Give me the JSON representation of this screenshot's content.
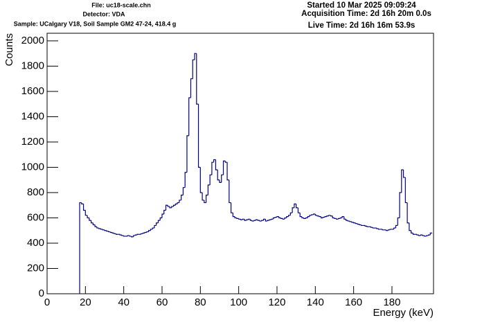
{
  "header": {
    "left": [
      "File: uc18-scale.chn",
      "Detector: VDA",
      "Sample: UCalgary V18, Soil Sample GM2 47-24, 418.4 g"
    ],
    "right": [
      "Started 10 Mar 2025 09:09:24",
      "Acquisition Time: 2d 16h 20m 0.0s",
      "Live Time: 2d 16h 16m 53.9s"
    ]
  },
  "chart_data": {
    "type": "histogram",
    "x_label": "Energy (keV)",
    "y_label": "Counts",
    "color": "#000080",
    "xlim": [
      0,
      201.7
    ],
    "ylim": [
      0,
      2060
    ],
    "xticks": [
      0,
      20,
      40,
      60,
      80,
      100,
      120,
      140,
      160,
      180
    ],
    "yticks": [
      0,
      200,
      400,
      600,
      800,
      1000,
      1200,
      1400,
      1600,
      1800,
      2000
    ],
    "bins": [
      17,
      18,
      19,
      20,
      21,
      22,
      23,
      24,
      25,
      26,
      27,
      28,
      29,
      30,
      31,
      32,
      33,
      34,
      35,
      36,
      37,
      38,
      39,
      40,
      41,
      42,
      43,
      44,
      45,
      46,
      47,
      48,
      49,
      50,
      51,
      52,
      53,
      54,
      55,
      56,
      57,
      58,
      59,
      60,
      61,
      62,
      63,
      64,
      65,
      66,
      67,
      68,
      69,
      70,
      71,
      72,
      73,
      74,
      75,
      76,
      77,
      78,
      79,
      80,
      81,
      82,
      83,
      84,
      85,
      86,
      87,
      88,
      89,
      90,
      91,
      92,
      93,
      94,
      95,
      96,
      97,
      98,
      99,
      100,
      101,
      102,
      103,
      104,
      105,
      106,
      107,
      108,
      109,
      110,
      111,
      112,
      113,
      114,
      115,
      116,
      117,
      118,
      119,
      120,
      121,
      122,
      123,
      124,
      125,
      126,
      127,
      128,
      129,
      130,
      131,
      132,
      133,
      134,
      135,
      136,
      137,
      138,
      139,
      140,
      141,
      142,
      143,
      144,
      145,
      146,
      147,
      148,
      149,
      150,
      151,
      152,
      153,
      154,
      155,
      156,
      157,
      158,
      159,
      160,
      161,
      162,
      163,
      164,
      165,
      166,
      167,
      168,
      169,
      170,
      171,
      172,
      173,
      174,
      175,
      176,
      177,
      178,
      179,
      180,
      181,
      182,
      183,
      184,
      185,
      186,
      187,
      188,
      189,
      190,
      191,
      192,
      193,
      194,
      195,
      196,
      197,
      198,
      199,
      200,
      201
    ],
    "values": [
      720,
      710,
      660,
      620,
      600,
      580,
      560,
      545,
      530,
      520,
      515,
      510,
      505,
      500,
      495,
      490,
      485,
      480,
      475,
      470,
      470,
      465,
      460,
      455,
      455,
      460,
      455,
      450,
      460,
      465,
      470,
      470,
      475,
      480,
      485,
      490,
      500,
      510,
      520,
      540,
      560,
      580,
      600,
      630,
      660,
      700,
      690,
      680,
      690,
      700,
      710,
      720,
      740,
      780,
      840,
      960,
      1250,
      1550,
      1700,
      1850,
      1900,
      1500,
      1000,
      800,
      740,
      720,
      780,
      860,
      940,
      1040,
      1060,
      980,
      900,
      880,
      940,
      1050,
      1040,
      900,
      720,
      640,
      610,
      600,
      595,
      590,
      585,
      590,
      580,
      585,
      590,
      580,
      575,
      580,
      585,
      580,
      575,
      580,
      590,
      575,
      580,
      585,
      590,
      600,
      605,
      610,
      600,
      595,
      590,
      600,
      610,
      620,
      640,
      680,
      710,
      680,
      640,
      610,
      600,
      595,
      600,
      610,
      620,
      625,
      630,
      620,
      615,
      610,
      600,
      605,
      610,
      615,
      620,
      615,
      600,
      595,
      590,
      595,
      600,
      610,
      590,
      580,
      575,
      570,
      565,
      560,
      555,
      550,
      545,
      540,
      540,
      535,
      530,
      530,
      525,
      520,
      520,
      515,
      510,
      510,
      505,
      505,
      500,
      505,
      510,
      510,
      520,
      540,
      600,
      800,
      980,
      920,
      720,
      560,
      500,
      480,
      470,
      470,
      465,
      460,
      465,
      460,
      455,
      460,
      465,
      480
    ]
  }
}
